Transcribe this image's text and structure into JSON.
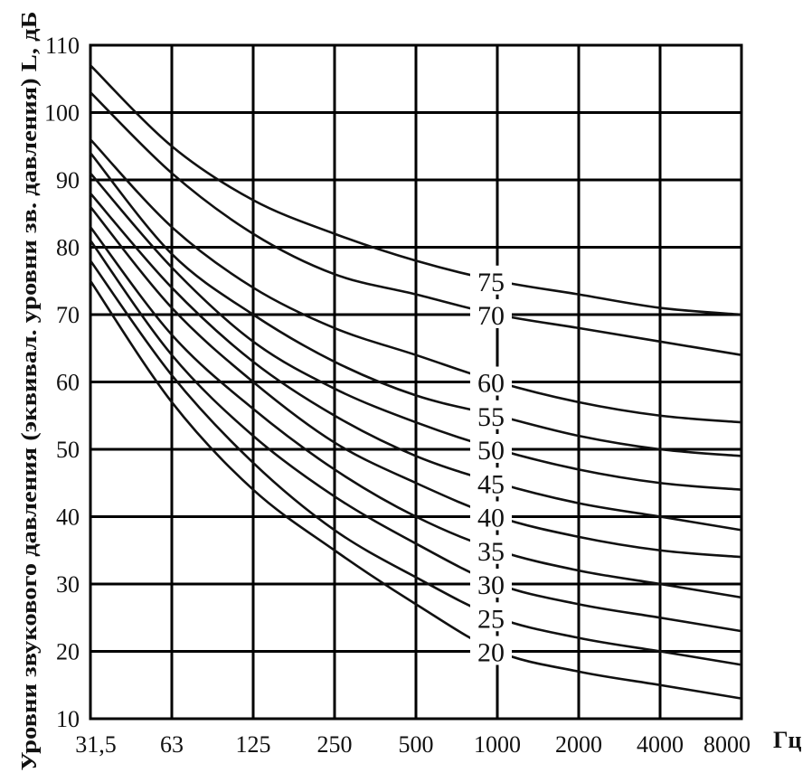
{
  "chart_data": {
    "type": "line",
    "title": "",
    "ylabel": "Уровни звукового давления (эквивал. уровни зв. давления) L, дБ",
    "xlabel": "Гц",
    "x_scale": "log2",
    "ylim": [
      10,
      110
    ],
    "y_ticks": [
      10,
      20,
      30,
      40,
      50,
      60,
      70,
      80,
      90,
      100,
      110
    ],
    "x": [
      31.5,
      63,
      125,
      250,
      500,
      1000,
      2000,
      4000,
      8000
    ],
    "x_tick_labels": [
      "31,5",
      "63",
      "125",
      "250",
      "500",
      "1000",
      "2000",
      "4000",
      "8000"
    ],
    "grid": true,
    "series": [
      {
        "name": "75",
        "values": [
          107,
          95,
          87,
          82,
          78,
          75,
          73,
          71,
          70
        ]
      },
      {
        "name": "70",
        "values": [
          103,
          91,
          82,
          76,
          73,
          70,
          68,
          66,
          64
        ]
      },
      {
        "name": "60",
        "values": [
          96,
          83,
          74,
          68,
          64,
          60,
          57,
          55,
          54
        ]
      },
      {
        "name": "55",
        "values": [
          94,
          79,
          70,
          63,
          58,
          55,
          52,
          50,
          49
        ]
      },
      {
        "name": "50",
        "values": [
          91,
          77,
          66,
          59,
          54,
          50,
          47,
          45,
          44
        ]
      },
      {
        "name": "45",
        "values": [
          88,
          74,
          63,
          55,
          49,
          45,
          42,
          40,
          38
        ]
      },
      {
        "name": "40",
        "values": [
          86,
          71,
          60,
          51,
          45,
          40,
          37,
          35,
          34
        ]
      },
      {
        "name": "35",
        "values": [
          83,
          67,
          56,
          47,
          40,
          35,
          32,
          30,
          28
        ]
      },
      {
        "name": "30",
        "values": [
          81,
          64,
          52,
          43,
          36,
          30,
          27,
          25,
          23
        ]
      },
      {
        "name": "25",
        "values": [
          78,
          61,
          48,
          38,
          31,
          25,
          22,
          20,
          18
        ]
      },
      {
        "name": "20",
        "values": [
          75,
          57,
          44,
          35,
          27,
          20,
          17,
          15,
          13
        ]
      }
    ]
  }
}
